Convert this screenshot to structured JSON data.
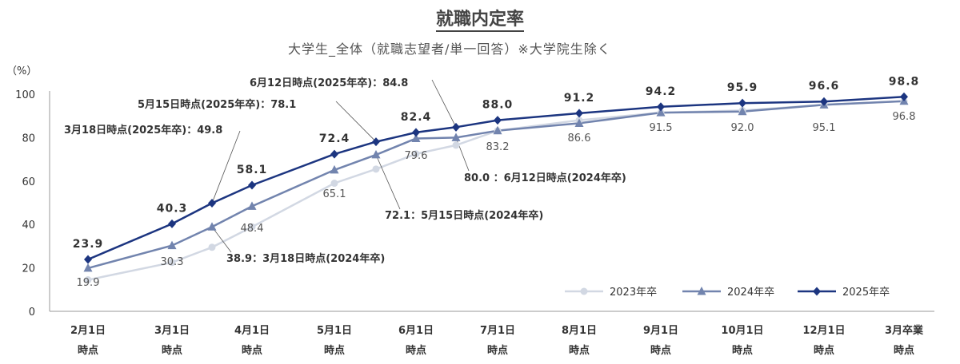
{
  "title": "就職内定率",
  "subtitle": "大学生_全体（就職志望者/単一回答）※大学院生除く",
  "chart_data": {
    "type": "line",
    "title": "就職内定率",
    "subtitle": "大学生_全体（就職志望者/単一回答）※大学院生除く",
    "yunit": "（%）",
    "ylim": [
      0,
      100
    ],
    "yticks": [
      0,
      20,
      40,
      60,
      80,
      100
    ],
    "categories": [
      [
        "2月1日",
        "時点"
      ],
      [
        "3月1日",
        "時点"
      ],
      [
        "3月18日",
        ""
      ],
      [
        "4月1日",
        "時点"
      ],
      [
        "5月1日",
        "時点"
      ],
      [
        "5月15日",
        ""
      ],
      [
        "6月1日",
        "時点"
      ],
      [
        "6月12日",
        ""
      ],
      [
        "7月1日",
        "時点"
      ],
      [
        "8月1日",
        "時点"
      ],
      [
        "9月1日",
        "時点"
      ],
      [
        "10月1日",
        "時点"
      ],
      [
        "12月1日",
        "時点"
      ],
      [
        "3月卒業",
        "時点"
      ]
    ],
    "visible_category_labels": [
      [
        "2月1日",
        "時点"
      ],
      [
        "3月1日",
        "時点"
      ],
      [
        "4月1日",
        "時点"
      ],
      [
        "5月1日",
        "時点"
      ],
      [
        "6月1日",
        "時点"
      ],
      [
        "7月1日",
        "時点"
      ],
      [
        "8月1日",
        "時点"
      ],
      [
        "9月1日",
        "時点"
      ],
      [
        "10月1日",
        "時点"
      ],
      [
        "12月1日",
        "時点"
      ],
      [
        "3月卒業",
        "時点"
      ]
    ],
    "series": [
      {
        "name": "2023年卒",
        "color": "#d2d8e3",
        "marker": "circle",
        "values": [
          14.5,
          22.5,
          29.5,
          38.9,
          59.0,
          65.5,
          72.5,
          76.5,
          83.2,
          88.0,
          91.5,
          92.5,
          95.1,
          96.8
        ]
      },
      {
        "name": "2024年卒",
        "color": "#7284ae",
        "marker": "triangle",
        "values": [
          19.9,
          30.3,
          38.9,
          48.4,
          65.1,
          72.1,
          79.6,
          80.0,
          83.2,
          86.6,
          91.5,
          92.0,
          95.1,
          96.8
        ]
      },
      {
        "name": "2025年卒",
        "color": "#1c3580",
        "marker": "diamond",
        "values": [
          23.9,
          40.3,
          49.8,
          58.1,
          72.4,
          78.1,
          82.4,
          84.8,
          88.0,
          91.2,
          94.2,
          95.9,
          96.6,
          98.8
        ]
      }
    ],
    "data_labels_2025": [
      {
        "index": 0,
        "text": "23.9"
      },
      {
        "index": 1,
        "text": "40.3"
      },
      {
        "index": 3,
        "text": "58.1"
      },
      {
        "index": 4,
        "text": "72.4"
      },
      {
        "index": 6,
        "text": "82.4"
      },
      {
        "index": 8,
        "text": "88.0"
      },
      {
        "index": 9,
        "text": "91.2"
      },
      {
        "index": 10,
        "text": "94.2"
      },
      {
        "index": 11,
        "text": "95.9"
      },
      {
        "index": 12,
        "text": "96.6"
      },
      {
        "index": 13,
        "text": "98.8"
      }
    ],
    "data_labels_2024": [
      {
        "index": 0,
        "text": "19.9"
      },
      {
        "index": 1,
        "text": "30.3"
      },
      {
        "index": 3,
        "text": "48.4"
      },
      {
        "index": 4,
        "text": "65.1"
      },
      {
        "index": 6,
        "text": "79.6"
      },
      {
        "index": 8,
        "text": "83.2"
      },
      {
        "index": 9,
        "text": "86.6"
      },
      {
        "index": 10,
        "text": "91.5"
      },
      {
        "index": 11,
        "text": "92.0"
      },
      {
        "index": 12,
        "text": "95.1"
      },
      {
        "index": 13,
        "text": "96.8"
      }
    ],
    "annotations": [
      {
        "text": "6月12日時点(2025年卒)：84.8",
        "series": "2025年卒",
        "index": 7
      },
      {
        "text": "5月15日時点(2025年卒)：78.1",
        "series": "2025年卒",
        "index": 5
      },
      {
        "text": "3月18日時点(2025年卒)：49.8",
        "series": "2025年卒",
        "index": 2
      },
      {
        "text": "80.0 ：6月12日時点(2024年卒)",
        "series": "2024年卒",
        "index": 7
      },
      {
        "text": "72.1：5月15日時点(2024年卒)",
        "series": "2024年卒",
        "index": 5
      },
      {
        "text": "38.9：3月18日時点(2024年卒)",
        "series": "2024年卒",
        "index": 2
      }
    ],
    "legend_position": "bottom-right",
    "grid": false
  }
}
